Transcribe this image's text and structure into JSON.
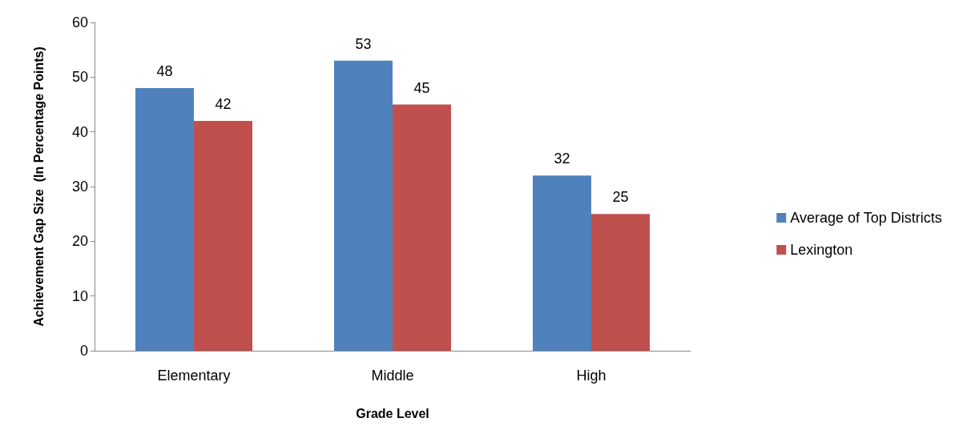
{
  "chart_data": {
    "type": "bar",
    "xlabel": "Grade Level",
    "ylabel": "Achievement Gap Size  (In Percentage Points)",
    "categories": [
      "Elementary",
      "Middle",
      "High"
    ],
    "series": [
      {
        "name": "Average of Top Districts",
        "color": "#4f81bd",
        "values": [
          48,
          53,
          32
        ]
      },
      {
        "name": "Lexington",
        "color": "#c0504d",
        "values": [
          42,
          45,
          25
        ]
      }
    ],
    "ylim": [
      0,
      60
    ],
    "yticks": [
      0,
      10,
      20,
      30,
      40,
      50,
      60
    ],
    "grid": false,
    "legend": "right",
    "data_labels": true
  }
}
